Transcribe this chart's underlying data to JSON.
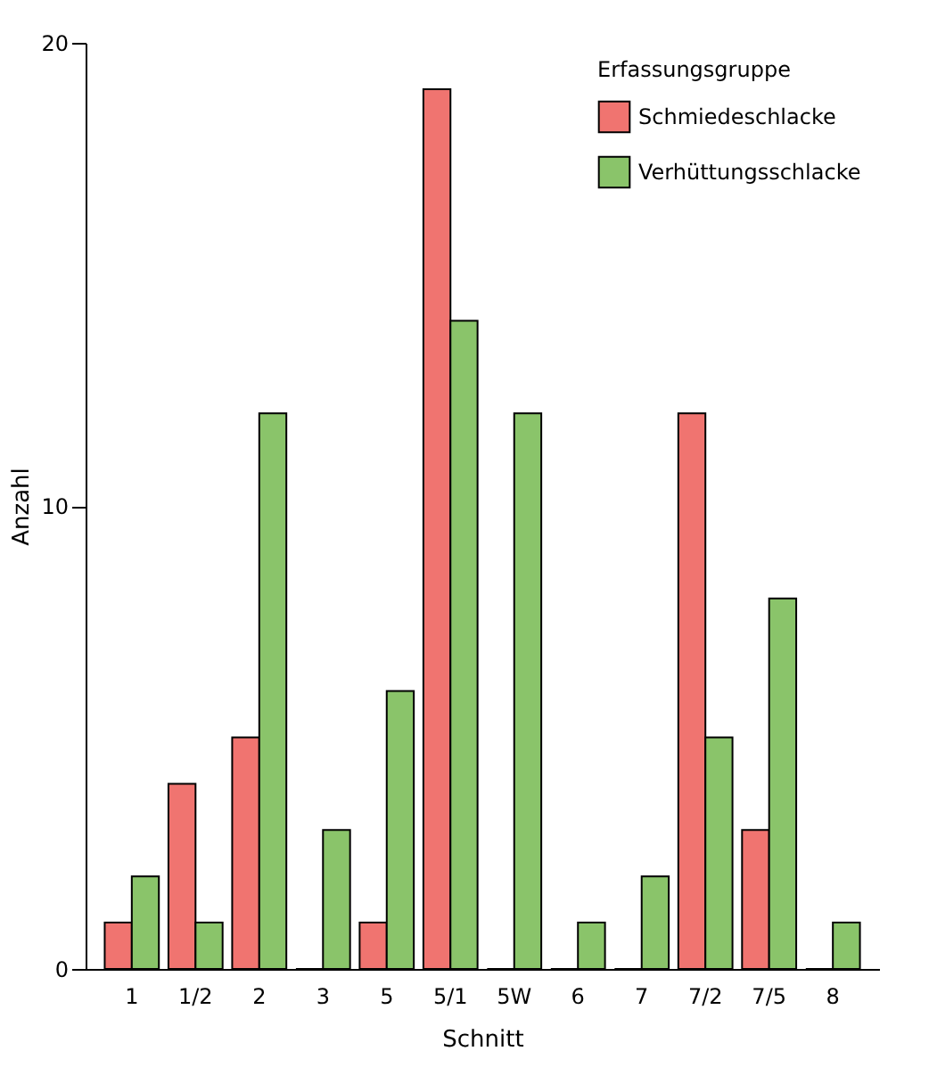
{
  "chart_data": {
    "type": "bar",
    "xlabel": "Schnitt",
    "ylabel": "Anzahl",
    "legend_title": "Erfassungsgruppe",
    "categories": [
      "1",
      "1/2",
      "2",
      "3",
      "5",
      "5/1",
      "5W",
      "6",
      "7",
      "7/2",
      "7/5",
      "8"
    ],
    "series": [
      {
        "name": "Schmiedeschlacke",
        "color": "#f07470",
        "values": [
          1,
          4,
          5,
          0,
          1,
          19,
          0,
          0,
          0,
          12,
          3,
          0
        ]
      },
      {
        "name": "Verhüttungsschlacke",
        "color": "#8ac46a",
        "values": [
          2,
          1,
          12,
          3,
          6,
          14,
          12,
          1,
          2,
          5,
          8,
          1
        ]
      }
    ],
    "ylim": [
      0,
      20
    ],
    "yticks": [
      0,
      10,
      20
    ],
    "grid": false,
    "legend": "top right"
  }
}
